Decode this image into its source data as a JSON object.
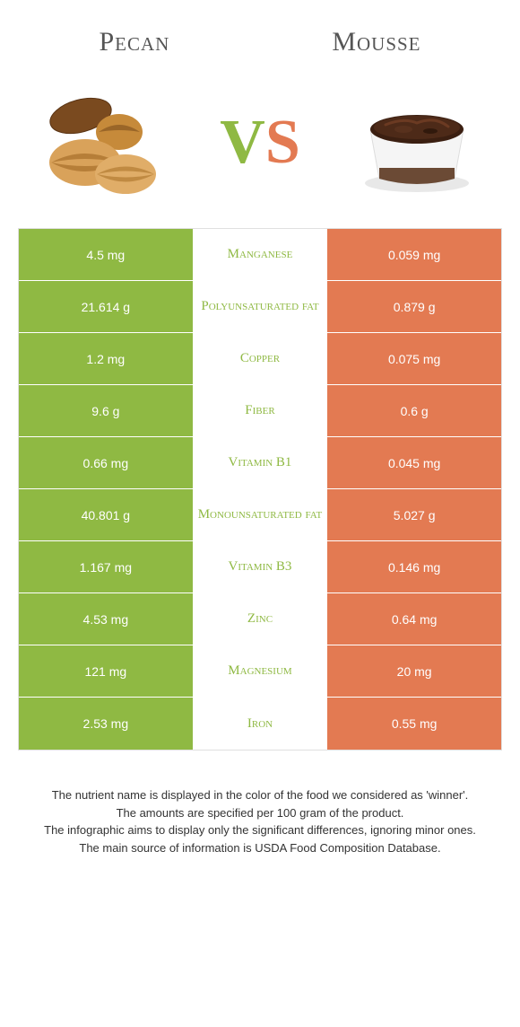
{
  "header": {
    "left_title": "Pecan",
    "right_title": "Mousse",
    "vs_v": "V",
    "vs_s": "S"
  },
  "colors": {
    "green": "#8fb943",
    "orange": "#e37a52",
    "background": "#ffffff",
    "row_border": "rgba(255,255,255,0.35)"
  },
  "table": {
    "rows": [
      {
        "left": "4.5 mg",
        "nutrient": "Manganese",
        "right": "0.059 mg",
        "winner": "green"
      },
      {
        "left": "21.614 g",
        "nutrient": "Polyunsaturated fat",
        "right": "0.879 g",
        "winner": "green"
      },
      {
        "left": "1.2 mg",
        "nutrient": "Copper",
        "right": "0.075 mg",
        "winner": "green"
      },
      {
        "left": "9.6 g",
        "nutrient": "Fiber",
        "right": "0.6 g",
        "winner": "green"
      },
      {
        "left": "0.66 mg",
        "nutrient": "Vitamin B1",
        "right": "0.045 mg",
        "winner": "green"
      },
      {
        "left": "40.801 g",
        "nutrient": "Monounsaturated fat",
        "right": "5.027 g",
        "winner": "green"
      },
      {
        "left": "1.167 mg",
        "nutrient": "Vitamin B3",
        "right": "0.146 mg",
        "winner": "green"
      },
      {
        "left": "4.53 mg",
        "nutrient": "Zinc",
        "right": "0.64 mg",
        "winner": "green"
      },
      {
        "left": "121 mg",
        "nutrient": "Magnesium",
        "right": "20 mg",
        "winner": "green"
      },
      {
        "left": "2.53 mg",
        "nutrient": "Iron",
        "right": "0.55 mg",
        "winner": "green"
      }
    ]
  },
  "description": {
    "line1": "The nutrient name is displayed in the color of the food we considered as 'winner'.",
    "line2": "The amounts are specified per 100 gram of the product.",
    "line3": "The infographic aims to display only the significant differences, ignoring minor ones.",
    "line4": "The main source of information is USDA Food Composition Database."
  }
}
